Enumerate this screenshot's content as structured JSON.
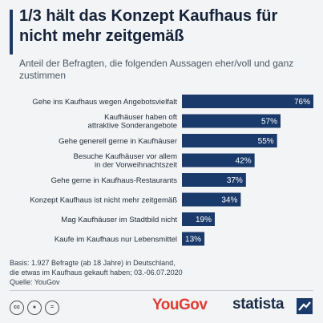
{
  "title": "1/3 hält das Konzept Kaufhaus für nicht mehr zeitgemäß",
  "subtitle": "Anteil der Befragten, die folgenden Aussagen eher/voll und ganz zustimmen",
  "footnote": {
    "line1": "Basis: 1.927 Befragte (ab 18 Jahre) in Deutschland,",
    "line2": "die etwas im Kaufhaus gekauft haben; 03.-06.07.2020",
    "line3": "Quelle: YouGov"
  },
  "branding": {
    "yougov": "YouGov",
    "statista": "statista"
  },
  "colors": {
    "bar": "#1a3a6b",
    "background": "#f2f4f6",
    "accent": "#1a3a6b",
    "yougov": "#e03c31"
  },
  "icons": [
    "cc-icon",
    "by-icon",
    "nd-icon",
    "statista-logo-icon"
  ],
  "chart_data": {
    "type": "bar",
    "orientation": "horizontal",
    "unit": "%",
    "xlim": [
      0,
      76
    ],
    "grid": false,
    "categories": [
      "Gehe ins Kaufhaus wegen Angebotsvielfalt",
      "Kaufhäuser haben oft attraktive Sonderangebote",
      "Gehe generell gerne in Kaufhäuser",
      "Besuche Kaufhäuser vor allem in der Vorweihnachtszeit",
      "Gehe gerne in Kaufhaus-Restaurants",
      "Konzept Kaufhaus ist nicht mehr zeitgemäß",
      "Mag Kaufhäuser im Stadtbild nicht",
      "Kaufe im Kaufhaus nur Lebensmittel"
    ],
    "label_lines": [
      [
        "Gehe ins Kaufhaus wegen Angebotsvielfalt"
      ],
      [
        "Kaufhäuser haben oft",
        "attraktive Sonderangebote"
      ],
      [
        "Gehe generell gerne in Kaufhäuser"
      ],
      [
        "Besuche Kaufhäuser vor allem",
        "in der Vorweihnachtszeit"
      ],
      [
        "Gehe gerne in Kaufhaus-Restaurants"
      ],
      [
        "Konzept Kaufhaus ist nicht mehr zeitgemäß"
      ],
      [
        "Mag Kaufhäuser im Stadtbild nicht"
      ],
      [
        "Kaufe im Kaufhaus nur Lebensmittel"
      ]
    ],
    "values": [
      76,
      57,
      55,
      42,
      37,
      34,
      19,
      13
    ],
    "value_labels": [
      "76%",
      "57%",
      "55%",
      "42%",
      "37%",
      "34%",
      "19%",
      "13%"
    ]
  }
}
